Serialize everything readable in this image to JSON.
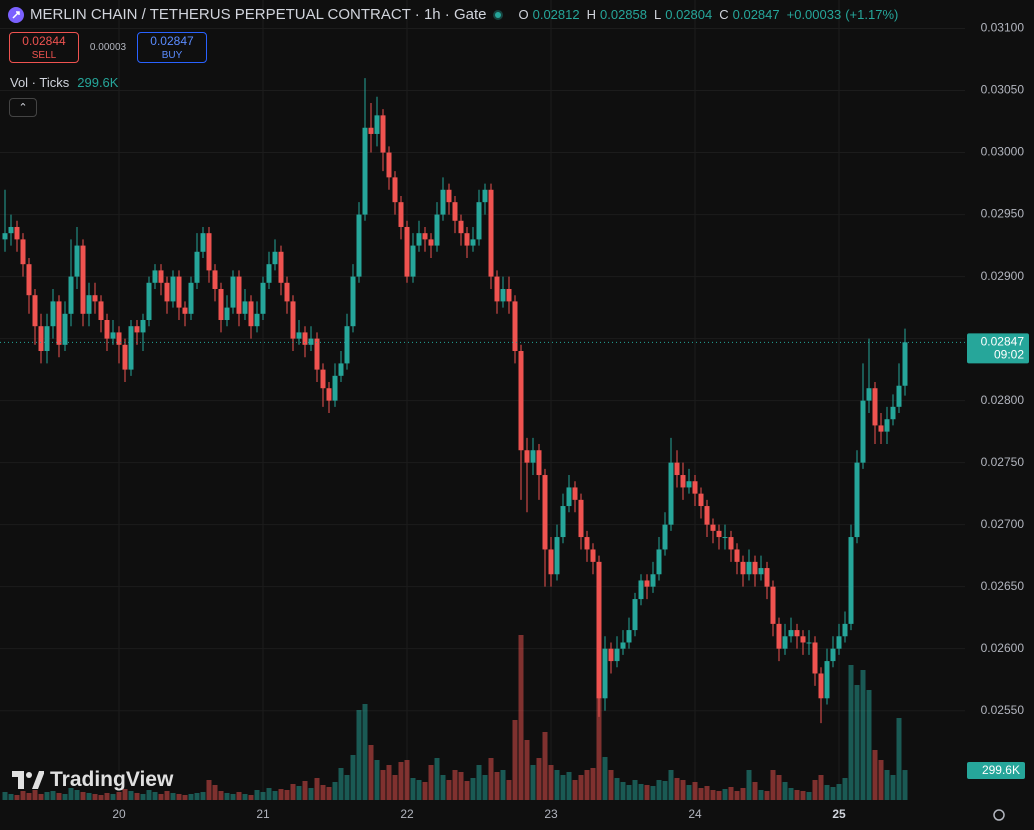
{
  "header": {
    "title": "MERLIN CHAIN / TETHERUS PERPETUAL CONTRACT · 1h · Gate",
    "ohlc": [
      {
        "label": "O",
        "value": 0.02812
      },
      {
        "label": "H",
        "value": 0.02858
      },
      {
        "label": "L",
        "value": 0.02804
      },
      {
        "label": "C",
        "value": 0.02847
      }
    ],
    "change": {
      "value": 0.00033,
      "label": "+0.00033"
    },
    "change_pct": {
      "value": 1.17,
      "label": "(+1.17%)"
    },
    "sell": {
      "price": 0.02844,
      "label": "SELL"
    },
    "spread": 3e-05,
    "buy": {
      "price": 0.02847,
      "label": "BUY"
    },
    "volume_legend": {
      "label": "Vol · Ticks",
      "value_label": "299.6K"
    }
  },
  "watermark": "TradingView",
  "chart_data": {
    "type": "candlestick",
    "up_color": "#26a69a",
    "down_color": "#ef5350",
    "grid": true,
    "ylim": [
      0.02478,
      0.03123
    ],
    "yticks": [
      {
        "value": 0.031,
        "label": "0.03100"
      },
      {
        "value": 0.0305,
        "label": "0.03050"
      },
      {
        "value": 0.03,
        "label": "0.03000"
      },
      {
        "value": 0.0295,
        "label": "0.02950"
      },
      {
        "value": 0.029,
        "label": "0.02900"
      },
      {
        "value": 0.0285,
        "label": "0.02850"
      },
      {
        "value": 0.028,
        "label": "0.02800"
      },
      {
        "value": 0.0275,
        "label": "0.02750"
      },
      {
        "value": 0.027,
        "label": "0.02700"
      },
      {
        "value": 0.0265,
        "label": "0.02650"
      },
      {
        "value": 0.026,
        "label": "0.02600"
      },
      {
        "value": 0.0255,
        "label": "0.02550"
      }
    ],
    "last_price": {
      "value": 0.02847,
      "time": "09:02"
    },
    "last_volume": {
      "value": 299600,
      "label": "299.6K"
    },
    "categories": [
      null,
      null,
      null,
      null,
      null,
      null,
      null,
      null,
      null,
      null,
      null,
      null,
      null,
      null,
      null,
      null,
      null,
      null,
      null,
      "20",
      null,
      null,
      null,
      null,
      null,
      null,
      null,
      null,
      null,
      null,
      null,
      null,
      null,
      null,
      null,
      null,
      null,
      null,
      null,
      null,
      null,
      null,
      null,
      "21",
      null,
      null,
      null,
      null,
      null,
      null,
      null,
      null,
      null,
      null,
      null,
      null,
      null,
      null,
      null,
      null,
      null,
      null,
      null,
      null,
      null,
      null,
      null,
      "22",
      null,
      null,
      null,
      null,
      null,
      null,
      null,
      null,
      null,
      null,
      null,
      null,
      null,
      null,
      null,
      null,
      null,
      null,
      null,
      null,
      null,
      null,
      null,
      "23",
      null,
      null,
      null,
      null,
      null,
      null,
      null,
      null,
      null,
      null,
      null,
      null,
      null,
      null,
      null,
      null,
      null,
      null,
      null,
      null,
      null,
      null,
      null,
      "24",
      null,
      null,
      null,
      null,
      null,
      null,
      null,
      null,
      null,
      null,
      null,
      null,
      null,
      null,
      null,
      null,
      null,
      null,
      null,
      null,
      null,
      null,
      null,
      "25",
      null,
      null,
      null,
      null,
      null,
      null,
      null,
      null,
      null,
      null,
      null
    ],
    "open": [
      0.0293,
      0.02935,
      0.0294,
      0.0293,
      0.0291,
      0.02885,
      0.0286,
      0.0284,
      0.0286,
      0.0288,
      0.02845,
      0.0287,
      0.029,
      0.02925,
      0.0287,
      0.02885,
      0.0288,
      0.02865,
      0.0285,
      0.02855,
      0.02845,
      0.02825,
      0.0286,
      0.02855,
      0.02865,
      0.02895,
      0.02905,
      0.02895,
      0.0288,
      0.029,
      0.02875,
      0.0287,
      0.02895,
      0.0292,
      0.02935,
      0.02905,
      0.0289,
      0.02865,
      0.02875,
      0.029,
      0.0287,
      0.0288,
      0.0286,
      0.0287,
      0.02895,
      0.0291,
      0.0292,
      0.02895,
      0.0288,
      0.0285,
      0.02855,
      0.02845,
      0.0285,
      0.02825,
      0.0281,
      0.028,
      0.0282,
      0.0283,
      0.0286,
      0.029,
      0.0295,
      0.0302,
      0.03015,
      0.0303,
      0.03,
      0.0298,
      0.0296,
      0.0294,
      0.029,
      0.02925,
      0.02935,
      0.0293,
      0.02925,
      0.0295,
      0.0297,
      0.0296,
      0.02945,
      0.02935,
      0.02925,
      0.0293,
      0.0296,
      0.0297,
      0.029,
      0.0288,
      0.0289,
      0.0288,
      0.0284,
      0.0276,
      0.0275,
      0.0276,
      0.0274,
      0.0268,
      0.0266,
      0.0269,
      0.02715,
      0.0273,
      0.0272,
      0.0269,
      0.0268,
      0.0267,
      0.0256,
      0.026,
      0.0259,
      0.026,
      0.02605,
      0.02615,
      0.0264,
      0.02655,
      0.0265,
      0.0266,
      0.0268,
      0.027,
      0.0275,
      0.0274,
      0.0273,
      0.02735,
      0.02725,
      0.02715,
      0.027,
      0.02695,
      0.0269,
      0.0269,
      0.0268,
      0.0267,
      0.0266,
      0.0267,
      0.0266,
      0.02665,
      0.0265,
      0.0262,
      0.026,
      0.0261,
      0.02615,
      0.0261,
      0.02605,
      0.02605,
      0.0258,
      0.0256,
      0.0259,
      0.026,
      0.0261,
      0.0262,
      0.0269,
      0.0275,
      0.028,
      0.0281,
      0.0278,
      0.02775,
      0.02785,
      0.02795,
      0.02812
    ],
    "high": [
      0.0297,
      0.0295,
      0.02945,
      0.02935,
      0.02915,
      0.0289,
      0.0287,
      0.0287,
      0.0289,
      0.02885,
      0.0288,
      0.0293,
      0.0294,
      0.0293,
      0.02895,
      0.02895,
      0.02885,
      0.0287,
      0.02865,
      0.0286,
      0.0285,
      0.02865,
      0.02865,
      0.0287,
      0.029,
      0.0291,
      0.0291,
      0.029,
      0.02905,
      0.02905,
      0.0288,
      0.029,
      0.02935,
      0.0294,
      0.0294,
      0.0291,
      0.02895,
      0.02885,
      0.02905,
      0.02905,
      0.0289,
      0.02885,
      0.0288,
      0.029,
      0.0292,
      0.0293,
      0.02925,
      0.029,
      0.02885,
      0.02865,
      0.0286,
      0.0286,
      0.02855,
      0.0283,
      0.02815,
      0.0283,
      0.0284,
      0.0287,
      0.0291,
      0.0296,
      0.0306,
      0.0304,
      0.03045,
      0.03035,
      0.03005,
      0.02985,
      0.02965,
      0.02945,
      0.02935,
      0.02945,
      0.0294,
      0.02935,
      0.0296,
      0.0298,
      0.02975,
      0.02965,
      0.0295,
      0.0294,
      0.0294,
      0.0297,
      0.02975,
      0.02975,
      0.02905,
      0.029,
      0.029,
      0.02885,
      0.02845,
      0.0277,
      0.0277,
      0.02765,
      0.02745,
      0.0269,
      0.027,
      0.02725,
      0.0274,
      0.02735,
      0.02725,
      0.02695,
      0.02685,
      0.02675,
      0.0261,
      0.02605,
      0.0261,
      0.02615,
      0.02625,
      0.02645,
      0.0266,
      0.0266,
      0.0267,
      0.0269,
      0.0271,
      0.0277,
      0.0276,
      0.0275,
      0.02745,
      0.0274,
      0.0273,
      0.0272,
      0.02705,
      0.027,
      0.027,
      0.02695,
      0.02685,
      0.02675,
      0.0268,
      0.02675,
      0.02675,
      0.0267,
      0.02655,
      0.02625,
      0.0262,
      0.02625,
      0.0262,
      0.02615,
      0.02615,
      0.0261,
      0.02585,
      0.026,
      0.0261,
      0.0262,
      0.0263,
      0.027,
      0.0276,
      0.0283,
      0.0285,
      0.02815,
      0.0279,
      0.02795,
      0.02805,
      0.0283,
      0.02858
    ],
    "low": [
      0.0292,
      0.02925,
      0.0292,
      0.029,
      0.0287,
      0.02845,
      0.0283,
      0.0283,
      0.0285,
      0.02835,
      0.0284,
      0.0286,
      0.0289,
      0.0286,
      0.0286,
      0.0287,
      0.02855,
      0.0284,
      0.02845,
      0.0283,
      0.02815,
      0.0282,
      0.02845,
      0.0284,
      0.0286,
      0.0289,
      0.02885,
      0.0287,
      0.02875,
      0.02865,
      0.0286,
      0.02865,
      0.0289,
      0.02915,
      0.02895,
      0.0288,
      0.02855,
      0.0286,
      0.0287,
      0.0286,
      0.02865,
      0.0285,
      0.02855,
      0.02865,
      0.0289,
      0.02905,
      0.02885,
      0.0287,
      0.0284,
      0.02845,
      0.02835,
      0.0284,
      0.02815,
      0.02795,
      0.0279,
      0.02795,
      0.02815,
      0.02825,
      0.02855,
      0.02895,
      0.02945,
      0.03,
      0.03005,
      0.02985,
      0.0297,
      0.0295,
      0.0293,
      0.02895,
      0.02895,
      0.0292,
      0.0292,
      0.02915,
      0.0292,
      0.02945,
      0.0295,
      0.02935,
      0.02925,
      0.02915,
      0.0292,
      0.02925,
      0.0295,
      0.0289,
      0.0287,
      0.02875,
      0.0287,
      0.0283,
      0.0272,
      0.0271,
      0.0274,
      0.0272,
      0.0265,
      0.0265,
      0.02655,
      0.02685,
      0.0271,
      0.0271,
      0.0268,
      0.0267,
      0.0266,
      0.02545,
      0.0255,
      0.0258,
      0.02585,
      0.02595,
      0.026,
      0.0261,
      0.02635,
      0.0264,
      0.02645,
      0.02655,
      0.02675,
      0.02695,
      0.0273,
      0.0272,
      0.02725,
      0.02715,
      0.02705,
      0.0269,
      0.02685,
      0.0268,
      0.0268,
      0.0267,
      0.0266,
      0.0265,
      0.02655,
      0.0265,
      0.02655,
      0.0264,
      0.0261,
      0.0259,
      0.02595,
      0.02605,
      0.026,
      0.02595,
      0.02595,
      0.0257,
      0.0254,
      0.02555,
      0.02585,
      0.02595,
      0.02605,
      0.02615,
      0.02685,
      0.02745,
      0.0279,
      0.02765,
      0.02765,
      0.02765,
      0.0278,
      0.0279,
      0.02804
    ],
    "close": [
      0.02935,
      0.0294,
      0.0293,
      0.0291,
      0.02885,
      0.0286,
      0.0284,
      0.0286,
      0.0288,
      0.02845,
      0.0287,
      0.029,
      0.02925,
      0.0287,
      0.02885,
      0.0288,
      0.02865,
      0.0285,
      0.02855,
      0.02845,
      0.02825,
      0.0286,
      0.02855,
      0.02865,
      0.02895,
      0.02905,
      0.02895,
      0.0288,
      0.029,
      0.02875,
      0.0287,
      0.02895,
      0.0292,
      0.02935,
      0.02905,
      0.0289,
      0.02865,
      0.02875,
      0.029,
      0.0287,
      0.0288,
      0.0286,
      0.0287,
      0.02895,
      0.0291,
      0.0292,
      0.02895,
      0.0288,
      0.0285,
      0.02855,
      0.02845,
      0.0285,
      0.02825,
      0.0281,
      0.028,
      0.0282,
      0.0283,
      0.0286,
      0.029,
      0.0295,
      0.0302,
      0.03015,
      0.0303,
      0.03,
      0.0298,
      0.0296,
      0.0294,
      0.029,
      0.02925,
      0.02935,
      0.0293,
      0.02925,
      0.0295,
      0.0297,
      0.0296,
      0.02945,
      0.02935,
      0.02925,
      0.0293,
      0.0296,
      0.0297,
      0.029,
      0.0288,
      0.0289,
      0.0288,
      0.0284,
      0.0276,
      0.0275,
      0.0276,
      0.0274,
      0.0268,
      0.0266,
      0.0269,
      0.02715,
      0.0273,
      0.0272,
      0.0269,
      0.0268,
      0.0267,
      0.0256,
      0.026,
      0.0259,
      0.026,
      0.02605,
      0.02615,
      0.0264,
      0.02655,
      0.0265,
      0.0266,
      0.0268,
      0.027,
      0.0275,
      0.0274,
      0.0273,
      0.02735,
      0.02725,
      0.02715,
      0.027,
      0.02695,
      0.0269,
      0.0269,
      0.0268,
      0.0267,
      0.0266,
      0.0267,
      0.0266,
      0.02665,
      0.0265,
      0.0262,
      0.026,
      0.0261,
      0.02615,
      0.0261,
      0.02605,
      0.02605,
      0.0258,
      0.0256,
      0.0259,
      0.026,
      0.0261,
      0.0262,
      0.0269,
      0.0275,
      0.028,
      0.0281,
      0.0278,
      0.02775,
      0.02785,
      0.02795,
      0.02812,
      0.02847
    ],
    "volume": [
      80000,
      60000,
      50000,
      90000,
      70000,
      100000,
      60000,
      80000,
      90000,
      70000,
      60000,
      120000,
      100000,
      80000,
      70000,
      60000,
      50000,
      70000,
      60000,
      80000,
      110000,
      90000,
      70000,
      60000,
      100000,
      80000,
      60000,
      90000,
      70000,
      60000,
      50000,
      60000,
      70000,
      80000,
      200000,
      150000,
      90000,
      70000,
      60000,
      80000,
      60000,
      50000,
      100000,
      80000,
      120000,
      90000,
      110000,
      100000,
      160000,
      140000,
      190000,
      120000,
      220000,
      150000,
      130000,
      180000,
      320000,
      250000,
      450000,
      900000,
      960000,
      550000,
      400000,
      300000,
      350000,
      250000,
      380000,
      400000,
      220000,
      200000,
      180000,
      350000,
      420000,
      250000,
      200000,
      300000,
      280000,
      190000,
      220000,
      350000,
      250000,
      420000,
      280000,
      300000,
      200000,
      800000,
      1650000,
      600000,
      350000,
      420000,
      680000,
      350000,
      300000,
      250000,
      280000,
      200000,
      250000,
      300000,
      320000,
      1550000,
      430000,
      300000,
      220000,
      180000,
      150000,
      200000,
      160000,
      150000,
      140000,
      200000,
      190000,
      300000,
      220000,
      200000,
      150000,
      180000,
      120000,
      140000,
      100000,
      90000,
      110000,
      130000,
      90000,
      120000,
      300000,
      180000,
      100000,
      90000,
      300000,
      250000,
      180000,
      120000,
      100000,
      90000,
      80000,
      200000,
      250000,
      150000,
      130000,
      160000,
      220000,
      1350000,
      1150000,
      1300000,
      1100000,
      500000,
      400000,
      300000,
      250000,
      820000,
      299600
    ]
  }
}
